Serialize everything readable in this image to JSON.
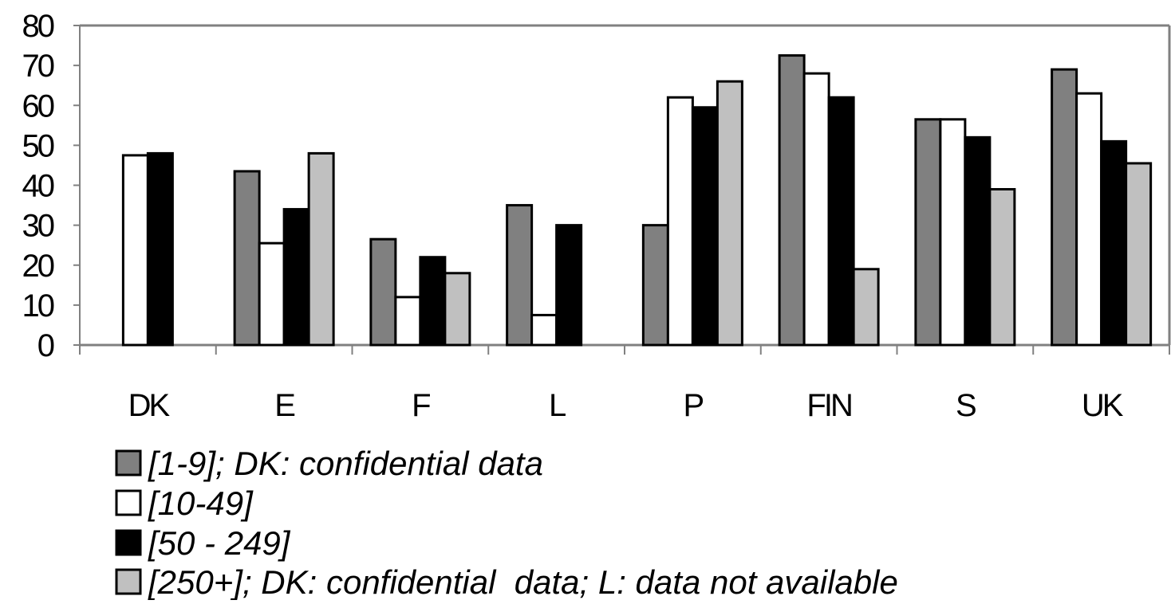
{
  "chart_data": {
    "type": "bar",
    "title": "",
    "xlabel": "",
    "ylabel": "",
    "ylim": [
      0,
      80
    ],
    "yticks": [
      "0",
      "10",
      "20",
      "30",
      "40",
      "50",
      "60",
      "70",
      "80"
    ],
    "categories": [
      "DK",
      "E",
      "F",
      "L",
      "P",
      "FIN",
      "S",
      "UK"
    ],
    "series": [
      {
        "name": "[1-9]; DK: confidential data",
        "color": "#808080",
        "values": [
          null,
          43.5,
          26.5,
          35,
          30,
          72.5,
          56.5,
          69
        ]
      },
      {
        "name": "[10-49]",
        "color": "#ffffff",
        "values": [
          47.5,
          25.5,
          12,
          7.5,
          62,
          68,
          56.5,
          63
        ]
      },
      {
        "name": "[50 - 249]",
        "color": "#000000",
        "values": [
          48,
          34,
          22,
          30,
          59.5,
          62,
          52,
          51
        ]
      },
      {
        "name": "[250+]; DK: confidential  data; L: data not available",
        "color": "#c0c0c0",
        "values": [
          null,
          48,
          18,
          null,
          66,
          19,
          39,
          45.5
        ]
      }
    ],
    "grid": false,
    "legend_position": "bottom-left"
  }
}
